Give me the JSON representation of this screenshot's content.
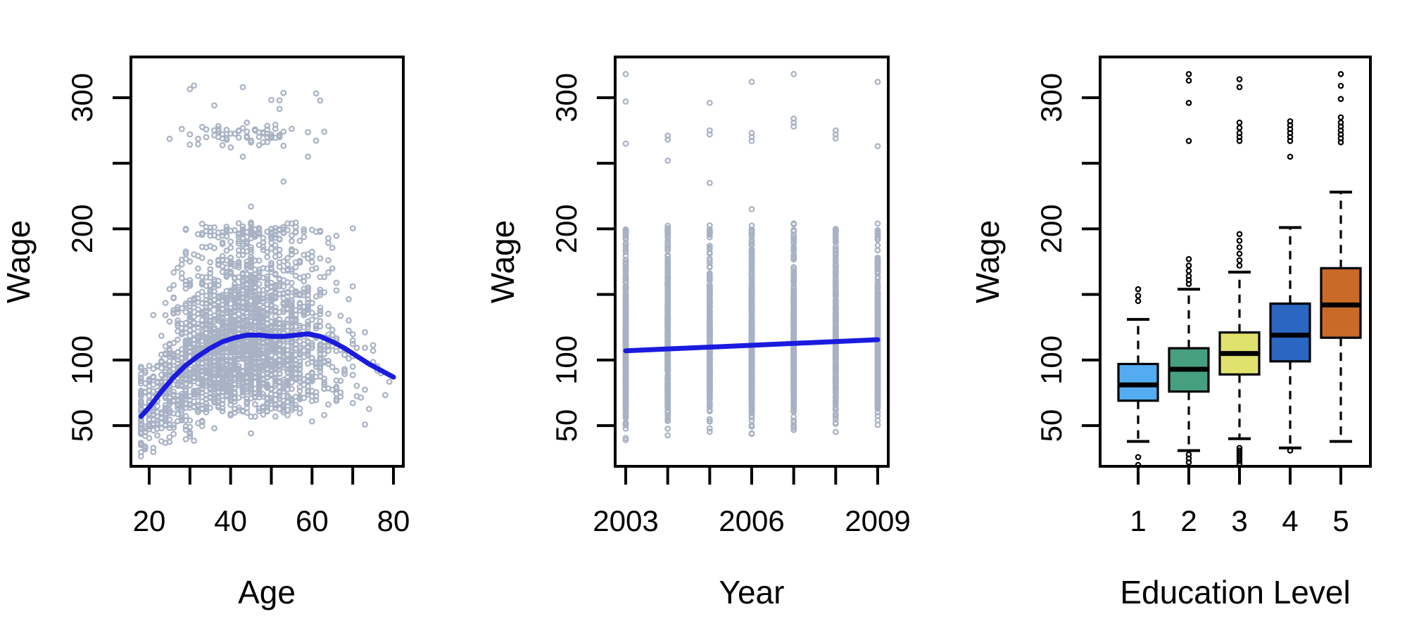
{
  "figure": {
    "background": "#FFFFFF",
    "axis_color": "#000000",
    "scatter_point_color": "#A8B2C4",
    "fit_line_color": "#1B1BDE",
    "outlier_point_color": "#000000"
  },
  "chart_data": [
    {
      "type": "scatter",
      "name": "wage-vs-age",
      "xlabel": "Age",
      "ylabel": "Wage",
      "xlim": [
        15.5,
        82.5
      ],
      "ylim": [
        19,
        331
      ],
      "grid": false,
      "x_ticks": [
        {
          "v": 20,
          "l": "20"
        },
        {
          "v": 30,
          "l": ""
        },
        {
          "v": 40,
          "l": "40"
        },
        {
          "v": 50,
          "l": ""
        },
        {
          "v": 60,
          "l": "60"
        },
        {
          "v": 70,
          "l": ""
        },
        {
          "v": 80,
          "l": "80"
        }
      ],
      "y_ticks": [
        {
          "v": 50,
          "l": "50"
        },
        {
          "v": 100,
          "l": "100"
        },
        {
          "v": 150,
          "l": ""
        },
        {
          "v": 200,
          "l": "200"
        },
        {
          "v": 250,
          "l": ""
        },
        {
          "v": 300,
          "l": "300"
        }
      ],
      "point_style": {
        "shape": "open-circle",
        "color": "#A8B2C4"
      },
      "smooth_line": {
        "color": "#1B1BDE",
        "points": [
          [
            18,
            57
          ],
          [
            20,
            64
          ],
          [
            23,
            76
          ],
          [
            26,
            87
          ],
          [
            29,
            96
          ],
          [
            32,
            103
          ],
          [
            35,
            109
          ],
          [
            38,
            114
          ],
          [
            41,
            117
          ],
          [
            44,
            119
          ],
          [
            47,
            119
          ],
          [
            50,
            118
          ],
          [
            53,
            118
          ],
          [
            56,
            119
          ],
          [
            59,
            120
          ],
          [
            62,
            118
          ],
          [
            65,
            114
          ],
          [
            68,
            109
          ],
          [
            71,
            103
          ],
          [
            74,
            97
          ],
          [
            77,
            92
          ],
          [
            80,
            87
          ]
        ]
      },
      "scatter_gen": {
        "n": 2600,
        "seed": 20090,
        "age_mean": 42,
        "age_sd": 11.5,
        "age_min": 18,
        "age_max": 80,
        "wage_log_sd": 0.3,
        "main_cap": 205,
        "floor": 21,
        "high_band": {
          "p": 0.027,
          "mean": 272,
          "sd": 5,
          "age_mean": 46,
          "age_sd": 9,
          "age_min": 25,
          "age_max": 67
        },
        "high_sparse": {
          "p": 0.0045,
          "min": 290,
          "max": 322,
          "age_min": 30,
          "age_max": 66
        }
      },
      "extra_points": [
        [
          53,
          236
        ],
        [
          45,
          217
        ],
        [
          43,
          255
        ],
        [
          59,
          255
        ]
      ]
    },
    {
      "type": "scatter",
      "name": "wage-vs-year",
      "xlabel": "Year",
      "ylabel": "Wage",
      "xlim": [
        2002.75,
        2009.25
      ],
      "ylim": [
        19,
        331
      ],
      "grid": false,
      "x_ticks": [
        {
          "v": 2003,
          "l": "2003"
        },
        {
          "v": 2004,
          "l": ""
        },
        {
          "v": 2005,
          "l": ""
        },
        {
          "v": 2006,
          "l": "2006"
        },
        {
          "v": 2007,
          "l": ""
        },
        {
          "v": 2008,
          "l": ""
        },
        {
          "v": 2009,
          "l": "2009"
        }
      ],
      "y_ticks": [
        {
          "v": 50,
          "l": "50"
        },
        {
          "v": 100,
          "l": "100"
        },
        {
          "v": 150,
          "l": ""
        },
        {
          "v": 200,
          "l": "200"
        },
        {
          "v": 250,
          "l": ""
        },
        {
          "v": 300,
          "l": "300"
        }
      ],
      "point_style": {
        "shape": "open-circle",
        "color": "#A8B2C4"
      },
      "fit_line": {
        "color": "#1B1BDE",
        "points": [
          [
            2003,
            107
          ],
          [
            2009,
            115.5
          ]
        ]
      },
      "strip_gen": {
        "per_year_n": 400,
        "seed": 771,
        "years": [
          2003,
          2004,
          2005,
          2006,
          2007,
          2008,
          2009
        ],
        "wage_median": 112,
        "wage_log_sd": 0.3,
        "main_cap": 205,
        "floor": 21
      },
      "high_outliers": {
        "2003": [
          265,
          297,
          318
        ],
        "2004": [
          252,
          268,
          271
        ],
        "2005": [
          235,
          272,
          275,
          296
        ],
        "2006": [
          215,
          267,
          270,
          273,
          312
        ],
        "2007": [
          278,
          281,
          284,
          318
        ],
        "2008": [
          269,
          272,
          275
        ],
        "2009": [
          263,
          312
        ]
      }
    },
    {
      "type": "box",
      "name": "wage-vs-education",
      "xlabel": "Education Level",
      "ylabel": "Wage",
      "ylim": [
        19,
        331
      ],
      "grid": false,
      "categories": [
        "1",
        "2",
        "3",
        "4",
        "5"
      ],
      "y_ticks": [
        {
          "v": 50,
          "l": "50"
        },
        {
          "v": 100,
          "l": "100"
        },
        {
          "v": 150,
          "l": ""
        },
        {
          "v": 200,
          "l": "200"
        },
        {
          "v": 250,
          "l": ""
        },
        {
          "v": 300,
          "l": "300"
        }
      ],
      "boxes": [
        {
          "label": "1",
          "color": "#54ACF0",
          "whisker_low": 38,
          "q1": 69,
          "median": 81,
          "q3": 97,
          "whisker_high": 131,
          "outliers_low": [
            20,
            26
          ],
          "outliers_high": [
            145,
            149,
            154
          ]
        },
        {
          "label": "2",
          "color": "#46A080",
          "whisker_low": 31,
          "q1": 76,
          "median": 93,
          "q3": 109,
          "whisker_high": 154,
          "outliers_low": [
            22,
            25,
            28
          ],
          "outliers_high": [
            158,
            161,
            164,
            168,
            172,
            177,
            267,
            296,
            313,
            318
          ]
        },
        {
          "label": "3",
          "color": "#E0E26E",
          "whisker_low": 40,
          "q1": 89,
          "median": 105,
          "q3": 121,
          "whisker_high": 167,
          "outliers_low": [
            21,
            23,
            25,
            27,
            29,
            31,
            33
          ],
          "outliers_high": [
            172,
            176,
            181,
            186,
            191,
            196,
            267,
            270,
            273,
            277,
            281,
            308,
            314
          ]
        },
        {
          "label": "4",
          "color": "#2B67C0",
          "whisker_low": 33,
          "q1": 99,
          "median": 119,
          "q3": 143,
          "whisker_high": 201,
          "outliers_low": [
            31
          ],
          "outliers_high": [
            255,
            267,
            270,
            273,
            276,
            279,
            282
          ]
        },
        {
          "label": "5",
          "color": "#C96A28",
          "whisker_low": 38,
          "q1": 117,
          "median": 142,
          "q3": 170,
          "whisker_high": 228,
          "outliers_low": [],
          "outliers_high": [
            266,
            269,
            272,
            275,
            278,
            281,
            285,
            299,
            309,
            318
          ]
        }
      ]
    }
  ]
}
